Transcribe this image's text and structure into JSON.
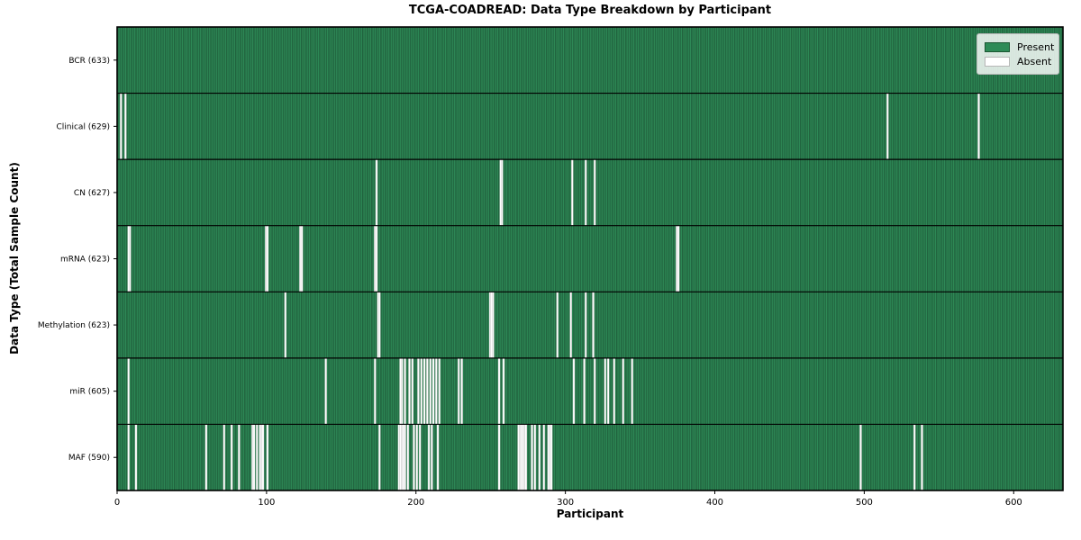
{
  "title": "TCGA-COADREAD: Data Type Breakdown by Participant",
  "chart_data": {
    "type": "heatmap",
    "title": "TCGA-COADREAD: Data Type Breakdown by Participant",
    "xlabel": "Participant",
    "ylabel": "Data Type (Total Sample Count)",
    "x_ticks": [
      0,
      100,
      200,
      300,
      400,
      500,
      600
    ],
    "x_range": [
      0,
      633
    ],
    "grid": false,
    "legend": {
      "position": "upper right",
      "entries": [
        {
          "label": "Present",
          "color": "#2e8b57"
        },
        {
          "label": "Absent",
          "color": "#ffffff"
        }
      ]
    },
    "colors": {
      "present": "#2e8b57",
      "present_edge": "#1c5c38",
      "absent": "#ffffff",
      "axis": "#000000",
      "legend_bg": "#dde5dd"
    },
    "rows": [
      {
        "label": "BCR (633)",
        "total": 633,
        "absent": []
      },
      {
        "label": "Clinical (629)",
        "total": 629,
        "absent": [
          2,
          5,
          515,
          576
        ]
      },
      {
        "label": "CN (627)",
        "total": 627,
        "absent": [
          173,
          256,
          257,
          304,
          313,
          319
        ]
      },
      {
        "label": "mRNA (623)",
        "total": 623,
        "absent": [
          7,
          8,
          99,
          100,
          122,
          123,
          172,
          173,
          374,
          375
        ]
      },
      {
        "label": "Methylation (623)",
        "total": 623,
        "absent": [
          112,
          174,
          175,
          249,
          250,
          251,
          294,
          303,
          313,
          318
        ]
      },
      {
        "label": "miR (605)",
        "total": 605,
        "absent": [
          7,
          139,
          172,
          189,
          190,
          192,
          195,
          197,
          201,
          203,
          205,
          207,
          209,
          211,
          213,
          215,
          228,
          230,
          255,
          258,
          305,
          312,
          319,
          326,
          328,
          332,
          338,
          344
        ]
      },
      {
        "label": "MAF (590)",
        "total": 590,
        "absent": [
          7,
          12,
          59,
          71,
          76,
          81,
          90,
          91,
          93,
          95,
          96,
          97,
          100,
          175,
          188,
          189,
          190,
          191,
          192,
          194,
          198,
          200,
          202,
          208,
          210,
          214,
          255,
          268,
          269,
          270,
          271,
          272,
          273,
          277,
          279,
          282,
          285,
          288,
          289,
          290,
          497,
          533,
          538
        ]
      }
    ]
  }
}
